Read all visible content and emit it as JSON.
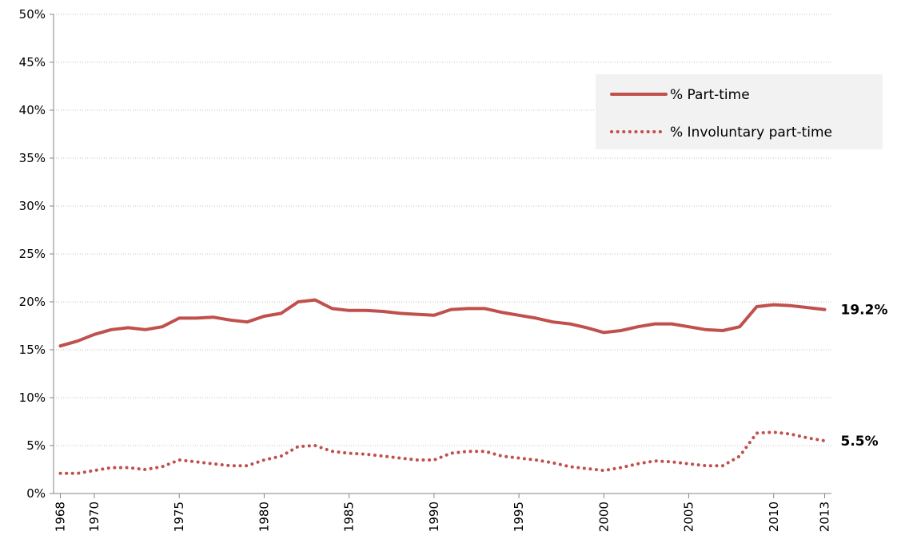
{
  "chart_data": {
    "type": "line",
    "x": [
      1968,
      1969,
      1970,
      1971,
      1972,
      1973,
      1974,
      1975,
      1976,
      1977,
      1978,
      1979,
      1980,
      1981,
      1982,
      1983,
      1984,
      1985,
      1986,
      1987,
      1988,
      1989,
      1990,
      1991,
      1992,
      1993,
      1994,
      1995,
      1996,
      1997,
      1998,
      1999,
      2000,
      2001,
      2002,
      2003,
      2004,
      2005,
      2006,
      2007,
      2008,
      2009,
      2010,
      2011,
      2012,
      2013
    ],
    "series": [
      {
        "name": "% Part-time",
        "color": "#c0504d",
        "dash": "solid",
        "values": [
          15.4,
          15.9,
          16.6,
          17.1,
          17.3,
          17.1,
          17.4,
          18.3,
          18.3,
          18.4,
          18.1,
          17.9,
          18.5,
          18.8,
          20.0,
          20.2,
          19.3,
          19.1,
          19.1,
          19.0,
          18.8,
          18.7,
          18.6,
          19.2,
          19.3,
          19.3,
          18.9,
          18.6,
          18.3,
          17.9,
          17.7,
          17.3,
          16.8,
          17.0,
          17.4,
          17.7,
          17.7,
          17.4,
          17.1,
          17.0,
          17.4,
          19.5,
          19.7,
          19.6,
          19.4,
          19.2
        ],
        "value_labels": [
          null,
          null,
          null,
          null,
          null,
          null,
          null,
          null,
          null,
          null,
          null,
          null,
          null,
          null,
          null,
          null,
          null,
          null,
          null,
          null,
          null,
          null,
          null,
          null,
          null,
          null,
          null,
          null,
          null,
          null,
          null,
          null,
          null,
          null,
          null,
          null,
          null,
          null,
          null,
          null,
          null,
          null,
          null,
          null,
          null,
          "19.2%"
        ]
      },
      {
        "name": "% Involuntary part-time",
        "color": "#c0504d",
        "dash": "dotted",
        "values": [
          2.1,
          2.1,
          2.4,
          2.7,
          2.7,
          2.5,
          2.8,
          3.5,
          3.3,
          3.1,
          2.9,
          2.9,
          3.5,
          3.9,
          4.9,
          5.0,
          4.4,
          4.2,
          4.1,
          3.9,
          3.7,
          3.5,
          3.5,
          4.2,
          4.4,
          4.4,
          3.9,
          3.7,
          3.5,
          3.2,
          2.8,
          2.6,
          2.4,
          2.7,
          3.1,
          3.4,
          3.3,
          3.1,
          2.9,
          2.9,
          3.9,
          6.3,
          6.4,
          6.2,
          5.8,
          5.5
        ],
        "value_labels": [
          null,
          null,
          null,
          null,
          null,
          null,
          null,
          null,
          null,
          null,
          null,
          null,
          null,
          null,
          null,
          null,
          null,
          null,
          null,
          null,
          null,
          null,
          null,
          null,
          null,
          null,
          null,
          null,
          null,
          null,
          null,
          null,
          null,
          null,
          null,
          null,
          null,
          null,
          null,
          null,
          null,
          null,
          null,
          null,
          null,
          "5.5%"
        ]
      }
    ],
    "xlim": [
      1967.6,
      2013.4
    ],
    "xticks": [
      1968,
      1970,
      1975,
      1980,
      1985,
      1990,
      1995,
      2000,
      2005,
      2010,
      2013
    ],
    "ylim": [
      0,
      50
    ],
    "yticks": [
      {
        "value": 0,
        "label": "0%"
      },
      {
        "value": 5,
        "label": "5%"
      },
      {
        "value": 10,
        "label": "10%"
      },
      {
        "value": 15,
        "label": "15%"
      },
      {
        "value": 20,
        "label": "20%"
      },
      {
        "value": 25,
        "label": "25%"
      },
      {
        "value": 30,
        "label": "30%"
      },
      {
        "value": 35,
        "label": "35%"
      },
      {
        "value": 40,
        "label": "40%"
      },
      {
        "value": 45,
        "label": "45%"
      },
      {
        "value": 50,
        "label": "50%"
      }
    ],
    "grid": true,
    "legend": "upper-right"
  }
}
